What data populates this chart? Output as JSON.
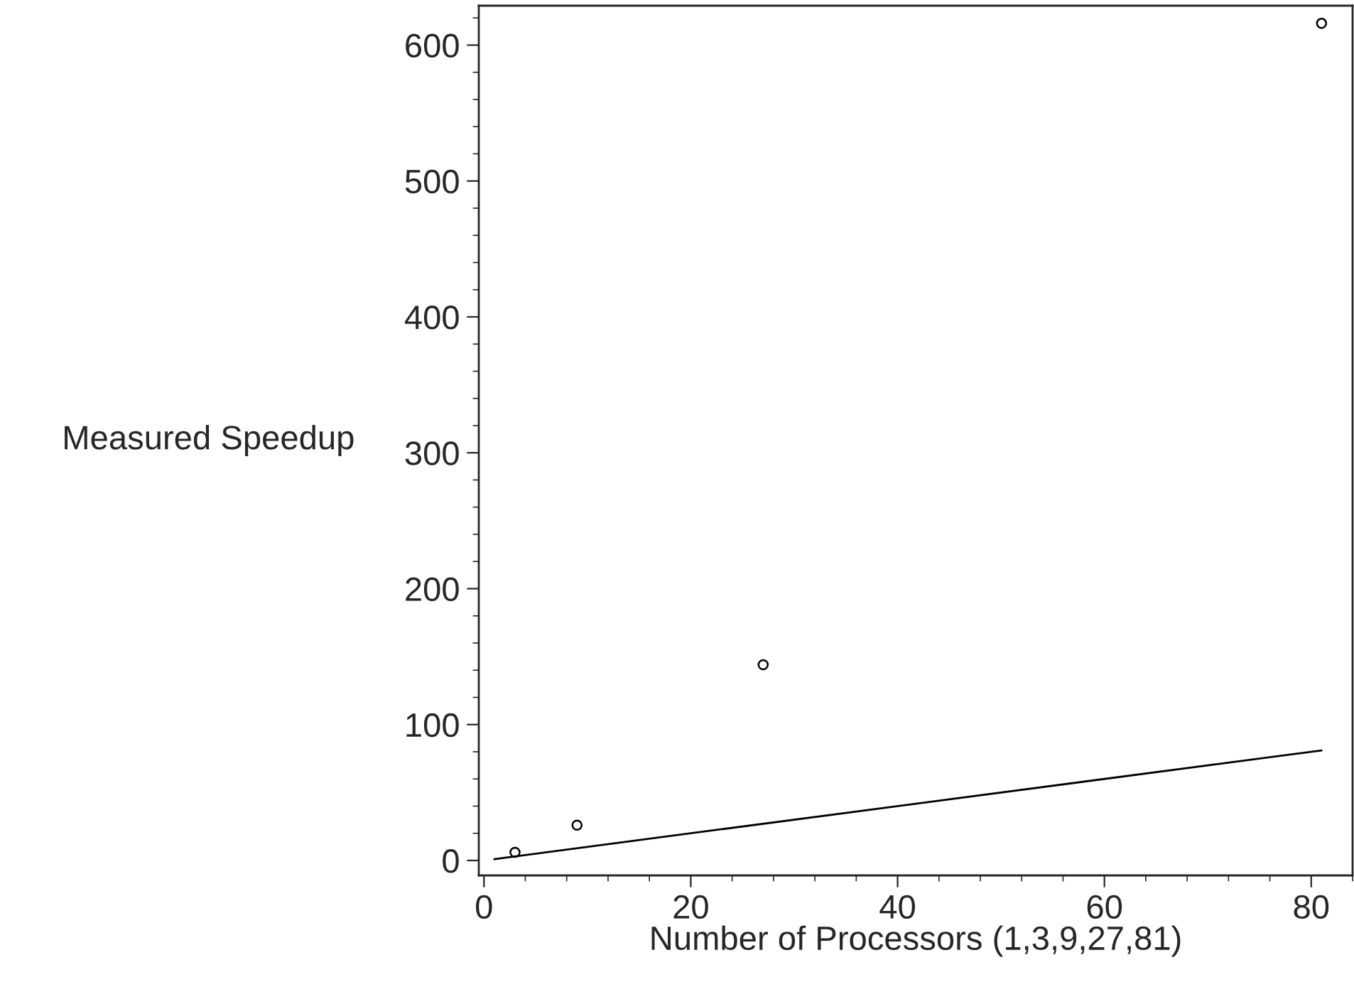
{
  "chart_data": {
    "type": "scatter",
    "xlabel": "Number of Processors (1,3,9,27,81)",
    "ylabel": "Measured Speedup",
    "series": [
      {
        "color": "#000000",
        "x": [
          3,
          9,
          27,
          81
        ],
        "values": [
          6,
          26,
          144,
          616
        ],
        "marker": "circle"
      },
      {
        "type": "line",
        "color": "#000000",
        "x": [
          1,
          81
        ],
        "values": [
          1,
          81
        ],
        "marker": "none",
        "line_style": "solid"
      }
    ],
    "xlim": [
      -0.5,
      84
    ],
    "ylim": [
      -11,
      629
    ],
    "xticks": [
      0,
      20,
      40,
      60,
      80
    ],
    "yticks": [
      0,
      100,
      200,
      300,
      400,
      500,
      600
    ],
    "grid": false,
    "legend": false
  }
}
